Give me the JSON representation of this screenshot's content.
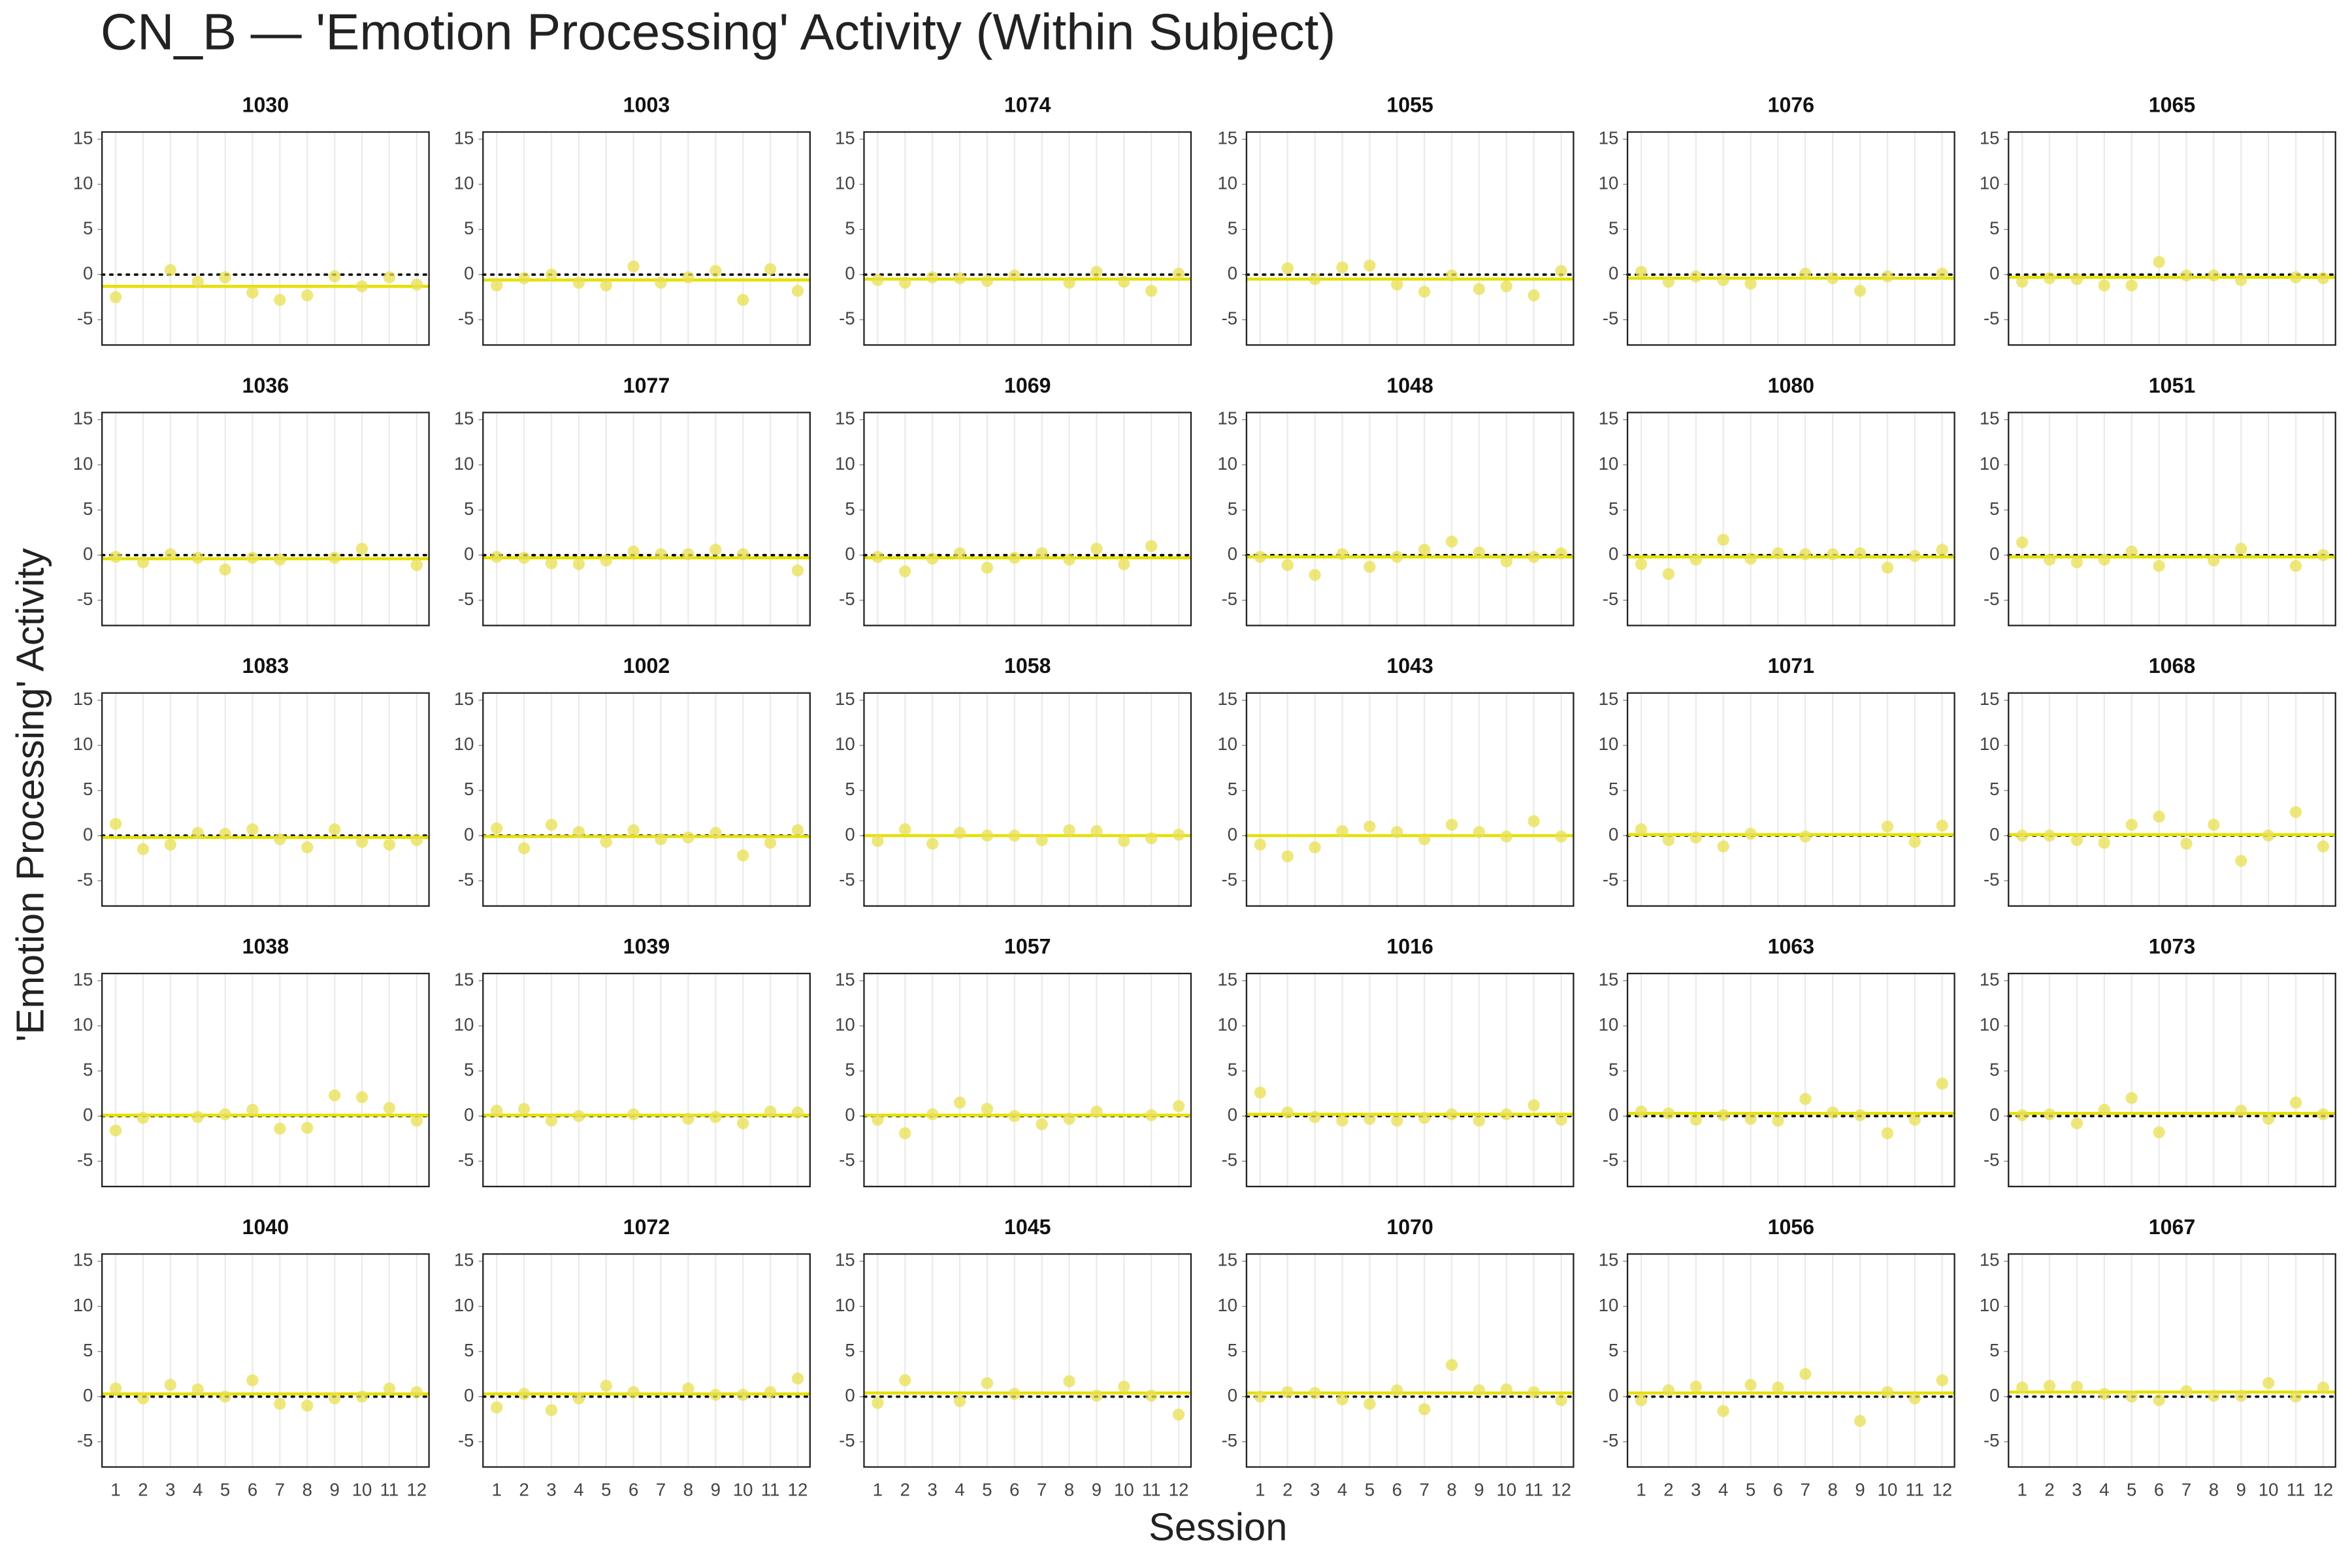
{
  "chart_data": {
    "type": "scatter",
    "title": "CN_B — 'Emotion Processing' Activity (Within Subject)",
    "x_label": "Session",
    "y_label": "'Emotion Processing' Activity",
    "x": [
      1,
      2,
      3,
      4,
      5,
      6,
      7,
      8,
      9,
      10,
      11,
      12
    ],
    "xlim": [
      0.5,
      12.45
    ],
    "xticks": [
      1,
      2,
      3,
      4,
      5,
      6,
      7,
      8,
      9,
      10,
      11,
      12
    ],
    "ylim": [
      -7.8,
      15.8
    ],
    "yticks": [
      -5,
      0,
      5,
      10,
      15
    ],
    "hline": 0,
    "grid": true,
    "point_color": "#e8e050",
    "line_color": "#e6e000",
    "panels": [
      {
        "title": "1030",
        "values": [
          -2.5,
          null,
          0.5,
          -0.8,
          -0.3,
          -2,
          -2.8,
          -2.3,
          -0.2,
          -1.3,
          -0.3,
          -1.1
        ],
        "mean": -1.3
      },
      {
        "title": "1003",
        "values": [
          -1.2,
          -0.4,
          0,
          -0.9,
          -1.2,
          0.9,
          -0.9,
          -0.3,
          0.4,
          -2.8,
          0.6,
          -1.8
        ],
        "mean": -0.6
      },
      {
        "title": "1074",
        "values": [
          -0.6,
          -0.9,
          -0.3,
          -0.4,
          -0.7,
          -0.1,
          null,
          -0.9,
          0.3,
          -0.8,
          -1.8,
          0.1
        ],
        "mean": -0.5
      },
      {
        "title": "1055",
        "values": [
          null,
          0.7,
          -0.5,
          0.8,
          1,
          -1.1,
          -1.9,
          -0.1,
          -1.6,
          -1.3,
          -2.3,
          0.4
        ],
        "mean": -0.5
      },
      {
        "title": "1076",
        "values": [
          0.3,
          -0.8,
          -0.2,
          -0.6,
          -1,
          null,
          0.1,
          -0.4,
          -1.8,
          -0.2,
          null,
          0.1
        ],
        "mean": -0.4
      },
      {
        "title": "1065",
        "values": [
          -0.8,
          -0.4,
          -0.5,
          -1.2,
          -1.2,
          1.4,
          -0.1,
          -0.1,
          -0.6,
          null,
          -0.3,
          -0.4
        ],
        "mean": -0.3
      },
      {
        "title": "1036",
        "values": [
          -0.2,
          -0.8,
          0.1,
          -0.3,
          -1.6,
          -0.3,
          -0.5,
          null,
          -0.3,
          0.7,
          null,
          -1.1
        ],
        "mean": -0.4
      },
      {
        "title": "1077",
        "values": [
          -0.2,
          -0.3,
          -0.9,
          -1,
          -0.6,
          0.4,
          0.1,
          0.1,
          0.6,
          0.1,
          null,
          -1.7
        ],
        "mean": -0.3
      },
      {
        "title": "1069",
        "values": [
          -0.2,
          -1.8,
          -0.4,
          0.2,
          -1.4,
          -0.3,
          0.2,
          -0.5,
          0.7,
          -1,
          1,
          null
        ],
        "mean": -0.3
      },
      {
        "title": "1048",
        "values": [
          -0.2,
          -1.1,
          -2.2,
          0.1,
          -1.3,
          -0.2,
          0.6,
          1.5,
          0.3,
          -0.7,
          -0.2,
          0.2
        ],
        "mean": -0.2
      },
      {
        "title": "1080",
        "values": [
          -1,
          -2.1,
          -0.5,
          1.7,
          -0.4,
          0.2,
          0.1,
          0.1,
          0.2,
          -1.4,
          -0.1,
          0.6
        ],
        "mean": -0.2
      },
      {
        "title": "1051",
        "values": [
          1.4,
          -0.5,
          -0.8,
          -0.5,
          0.4,
          -1.2,
          null,
          -0.6,
          0.7,
          null,
          -1.2,
          0
        ],
        "mean": -0.2
      },
      {
        "title": "1083",
        "values": [
          1.3,
          -1.5,
          -1,
          0.3,
          0.2,
          0.7,
          -0.4,
          -1.3,
          0.7,
          -0.7,
          -1,
          -0.5
        ],
        "mean": -0.2
      },
      {
        "title": "1002",
        "values": [
          0.8,
          -1.4,
          1.2,
          0.4,
          -0.7,
          0.6,
          -0.4,
          -0.2,
          0.3,
          -2.2,
          -0.8,
          0.6
        ],
        "mean": -0.1
      },
      {
        "title": "1058",
        "values": [
          -0.6,
          0.7,
          -0.9,
          0.3,
          0,
          0,
          -0.5,
          0.6,
          0.5,
          -0.6,
          -0.3,
          0.1
        ],
        "mean": 0
      },
      {
        "title": "1043",
        "values": [
          -1,
          -2.3,
          -1.3,
          0.5,
          1,
          0.4,
          -0.4,
          1.2,
          0.4,
          -0.1,
          1.6,
          -0.1
        ],
        "mean": 0
      },
      {
        "title": "1071",
        "values": [
          0.7,
          -0.5,
          -0.2,
          -1.2,
          0.2,
          null,
          -0.1,
          null,
          null,
          1,
          -0.7,
          1.1
        ],
        "mean": 0.1
      },
      {
        "title": "1068",
        "values": [
          0,
          0,
          -0.5,
          -0.8,
          1.2,
          2.1,
          -0.9,
          1.2,
          -2.8,
          0,
          2.6,
          -1.2
        ],
        "mean": 0.1
      },
      {
        "title": "1038",
        "values": [
          -1.6,
          -0.2,
          null,
          -0.1,
          0.2,
          0.7,
          -1.4,
          -1.3,
          2.3,
          2.1,
          0.9,
          -0.5
        ],
        "mean": 0.1
      },
      {
        "title": "1039",
        "values": [
          0.6,
          0.8,
          -0.5,
          0,
          null,
          0.2,
          null,
          -0.3,
          -0.1,
          -0.8,
          0.5,
          0.4
        ],
        "mean": 0.1
      },
      {
        "title": "1057",
        "values": [
          -0.4,
          -1.9,
          0.2,
          1.5,
          0.8,
          0,
          -0.9,
          -0.3,
          0.5,
          null,
          0.1,
          1.1
        ],
        "mean": 0.1
      },
      {
        "title": "1016",
        "values": [
          2.6,
          0.4,
          -0.1,
          -0.5,
          -0.3,
          -0.5,
          -0.2,
          0.2,
          -0.5,
          0.2,
          1.2,
          -0.4
        ],
        "mean": 0.2
      },
      {
        "title": "1063",
        "values": [
          0.5,
          0.3,
          -0.4,
          0.1,
          -0.3,
          -0.5,
          1.9,
          0.4,
          0.1,
          -1.9,
          -0.4,
          3.6
        ],
        "mean": 0.3
      },
      {
        "title": "1073",
        "values": [
          0.1,
          0.2,
          -0.8,
          0.7,
          2,
          -1.8,
          null,
          null,
          0.6,
          -0.3,
          1.5,
          0.2
        ],
        "mean": 0.3
      },
      {
        "title": "1040",
        "values": [
          0.9,
          -0.2,
          1.3,
          0.8,
          0,
          1.8,
          -0.8,
          -1,
          -0.2,
          0,
          0.9,
          0.5
        ],
        "mean": 0.3
      },
      {
        "title": "1072",
        "values": [
          -1.2,
          0.3,
          -1.5,
          -0.2,
          1.2,
          0.5,
          null,
          0.9,
          0.2,
          0.2,
          0.5,
          2
        ],
        "mean": 0.3
      },
      {
        "title": "1045",
        "values": [
          -0.7,
          1.8,
          null,
          -0.5,
          1.5,
          0.3,
          null,
          1.7,
          0.1,
          1.1,
          0.1,
          -2
        ],
        "mean": 0.4
      },
      {
        "title": "1070",
        "values": [
          0,
          0.5,
          0.4,
          -0.3,
          -0.8,
          0.7,
          -1.4,
          3.5,
          0.7,
          0.8,
          0.5,
          -0.4
        ],
        "mean": 0.4
      },
      {
        "title": "1056",
        "values": [
          -0.4,
          0.7,
          1.1,
          -1.6,
          1.3,
          1,
          2.5,
          null,
          -2.7,
          0.5,
          -0.2,
          1.8
        ],
        "mean": 0.4
      },
      {
        "title": "1067",
        "values": [
          1,
          1.2,
          1.1,
          0.3,
          0,
          -0.4,
          0.6,
          0.1,
          0.1,
          1.5,
          0,
          1
        ],
        "mean": 0.5
      }
    ]
  }
}
